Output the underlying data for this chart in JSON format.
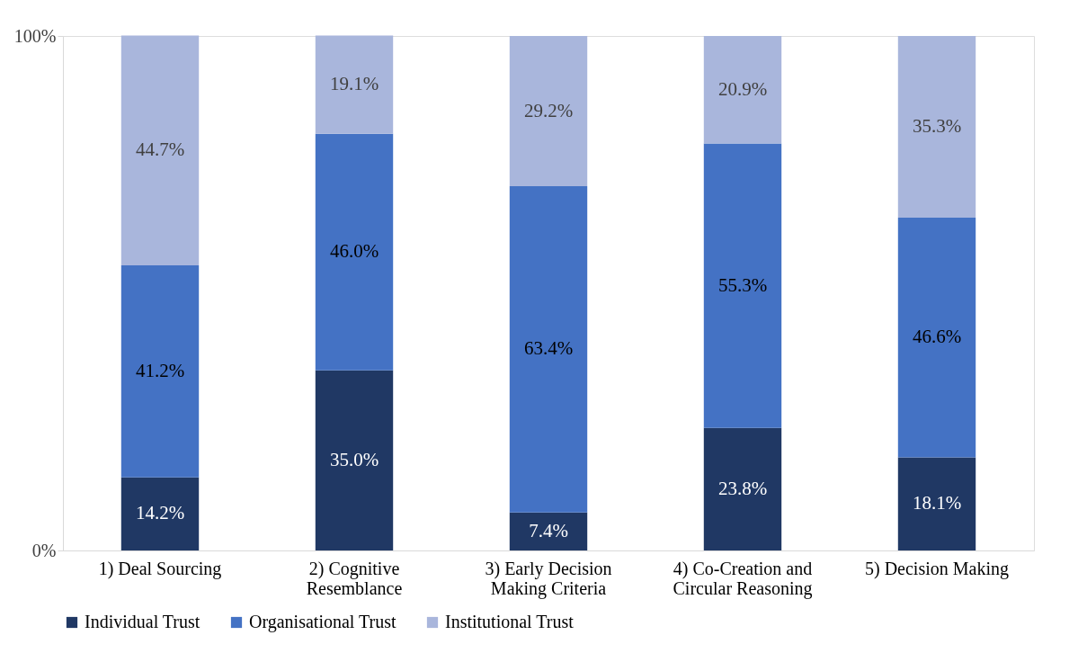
{
  "chart_data": {
    "type": "bar",
    "stacked": true,
    "categories": [
      "1) Deal Sourcing",
      "2) Cognitive\nResemblance",
      "3) Early Decision\nMaking Criteria",
      "4) Co-Creation and\nCircular Reasoning",
      "5) Decision Making"
    ],
    "series": [
      {
        "name": "Individual Trust",
        "color": "#203864",
        "values": [
          14.2,
          35.0,
          7.4,
          23.8,
          18.1
        ],
        "value_labels": [
          "14.2%",
          "35.0%",
          "7.4%",
          "23.8%",
          "18.1%"
        ]
      },
      {
        "name": "Organisational Trust",
        "color": "#4472c4",
        "values": [
          41.2,
          46.0,
          63.4,
          55.3,
          46.6
        ],
        "value_labels": [
          "41.2%",
          "46.0%",
          "63.4%",
          "55.3%",
          "46.6%"
        ]
      },
      {
        "name": "Institutional Trust",
        "color": "#a9b6dc",
        "values": [
          44.7,
          19.1,
          29.2,
          20.9,
          35.3
        ],
        "value_labels": [
          "44.7%",
          "19.1%",
          "29.2%",
          "20.9%",
          "35.3%"
        ]
      }
    ],
    "ylim": [
      0,
      100
    ],
    "yticks": [
      {
        "value": 0,
        "label": "0%"
      },
      {
        "value": 100,
        "label": "100%"
      }
    ],
    "grid": false,
    "legend": "bottom"
  }
}
